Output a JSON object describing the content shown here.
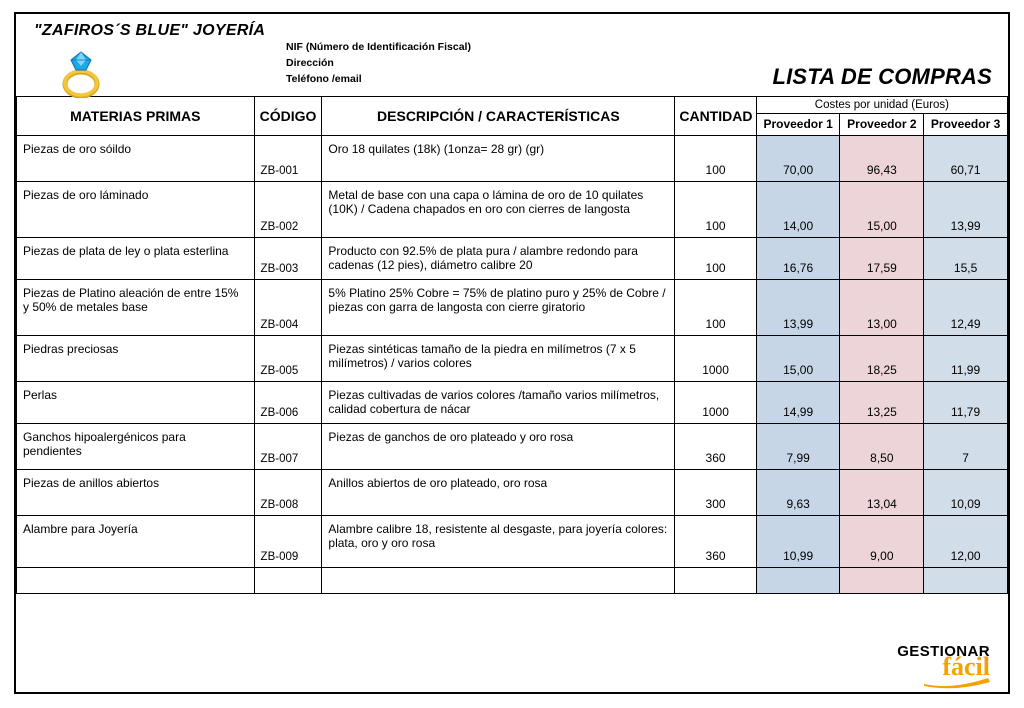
{
  "header": {
    "company": "\"ZAFIROS´S BLUE\" JOYERÍA",
    "fiscal_line1": "NIF (Número de Identificación Fiscal)",
    "fiscal_line2": "Dirección",
    "fiscal_line3": "Teléfono /email",
    "title": "LISTA DE COMPRAS"
  },
  "table": {
    "costes_header": "Costes por unidad (Euros)",
    "columns": {
      "materias": "MATERIAS PRIMAS",
      "codigo": "CÓDIGO",
      "descripcion": "DESCRIPCIÓN / CARACTERÍSTICAS",
      "cantidad": "CANTIDAD",
      "prov1": "Proveedor 1",
      "prov2": "Proveedor 2",
      "prov3": "Proveedor 3"
    },
    "header_bg": "#ffffff",
    "row_border": "#000000",
    "prov_colors": {
      "p1": "#c7d6e6",
      "p2": "#ecd4d8",
      "p3": "#d1dde8"
    },
    "rows": [
      {
        "mat": "Piezas de oro sóildo",
        "cod": "ZB-001",
        "desc": "Oro 18 quilates (18k)  (1onza= 28 gr) (gr)",
        "cant": "100",
        "p1": "70,00",
        "p2": "96,43",
        "p3": "60,71",
        "h": 46
      },
      {
        "mat": "Piezas de oro láminado",
        "cod": "ZB-002",
        "desc": "Metal de base con una capa o lámina de oro de 10 quilates (10K) / Cadena chapados en oro con cierres de langosta",
        "cant": "100",
        "p1": "14,00",
        "p2": "15,00",
        "p3": "13,99",
        "h": 56
      },
      {
        "mat": "Piezas de plata de ley o plata esterlina",
        "cod": "ZB-003",
        "desc": "Producto con 92.5% de plata pura / alambre redondo para cadenas (12 pies), diámetro calibre 20",
        "cant": "100",
        "p1": "16,76",
        "p2": "17,59",
        "p3": "15,5",
        "h": 42
      },
      {
        "mat": "Piezas de Platino aleación de entre 15% y 50% de metales base",
        "cod": "ZB-004",
        "desc": "5% Platino 25% Cobre = 75% de platino puro y 25% de Cobre / piezas con garra de langosta con cierre giratorio",
        "cant": "100",
        "p1": "13,99",
        "p2": "13,00",
        "p3": "12,49",
        "h": 56
      },
      {
        "mat": "Piedras preciosas",
        "cod": "ZB-005",
        "desc": "Piezas sintéticas tamaño de la piedra en milímetros (7 x 5 milímetros) / varios colores",
        "cant": "1000",
        "p1": "15,00",
        "p2": "18,25",
        "p3": "11,99",
        "h": 46
      },
      {
        "mat": "Perlas",
        "cod": "ZB-006",
        "desc": "Piezas cultivadas de varios colores /tamaño varios milímetros, calidad cobertura de nácar",
        "cant": "1000",
        "p1": "14,99",
        "p2": "13,25",
        "p3": "11,79",
        "h": 42
      },
      {
        "mat": "Ganchos hipoalergénicos para pendientes",
        "cod": "ZB-007",
        "desc": "Piezas de ganchos de oro plateado y oro rosa",
        "cant": "360",
        "p1": "7,99",
        "p2": "8,50",
        "p3": "7",
        "h": 46
      },
      {
        "mat": "Piezas de anillos abiertos",
        "cod": "ZB-008",
        "desc": "Anillos abiertos de oro plateado, oro rosa",
        "cant": "300",
        "p1": "9,63",
        "p2": "13,04",
        "p3": "10,09",
        "h": 46
      },
      {
        "mat": "Alambre para Joyería",
        "cod": "ZB-009",
        "desc": "Alambre calibre 18, resistente al desgaste, para joyería colores: plata, oro y oro rosa",
        "cant": "360",
        "p1": "10,99",
        "p2": "9,00",
        "p3": "12,00",
        "h": 52
      }
    ]
  },
  "footer": {
    "logo_line1": "GESTIONAR",
    "logo_line2": "fácil",
    "swoosh_color": "#f5a100"
  },
  "icon": {
    "ring_band": "#f2c73c",
    "ring_shadow": "#d9a520",
    "gem": "#1fa8e6",
    "gem_dark": "#0b6fb8",
    "gem_light": "#7fd4f7"
  }
}
